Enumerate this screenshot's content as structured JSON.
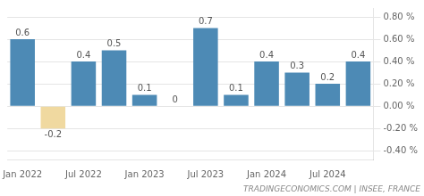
{
  "chart_data": {
    "type": "bar",
    "categories": [
      "Jan 2022",
      null,
      "Jul 2022",
      null,
      "Jan 2023",
      null,
      "Jul 2023",
      null,
      "Jan 2024",
      null,
      "Jul 2024",
      null
    ],
    "values": [
      0.6,
      -0.2,
      0.4,
      0.5,
      0.1,
      0.0,
      0.7,
      0.1,
      0.4,
      0.3,
      0.2,
      0.4
    ],
    "colors": [
      "#4d8ab5",
      "#f0d9a0",
      "#4d8ab5",
      "#4d8ab5",
      "#4d8ab5",
      "#4d8ab5",
      "#4d8ab5",
      "#4d8ab5",
      "#4d8ab5",
      "#4d8ab5",
      "#4d8ab5",
      "#4d8ab5"
    ],
    "data_labels": true,
    "ylim": [
      -0.48,
      0.88
    ],
    "yticks": [
      {
        "value": -0.4,
        "label": "-0.40 %"
      },
      {
        "value": -0.2,
        "label": "-0.20 %"
      },
      {
        "value": 0.0,
        "label": "0.00 %"
      },
      {
        "value": 0.2,
        "label": "0.20 %"
      },
      {
        "value": 0.4,
        "label": "0.40 %"
      },
      {
        "value": 0.6,
        "label": "0.60 %"
      },
      {
        "value": 0.8,
        "label": "0.80 %"
      }
    ],
    "grid": true,
    "annotations": [
      "TRADINGECONOMICS.COM | INSEE, FRANCE"
    ]
  }
}
